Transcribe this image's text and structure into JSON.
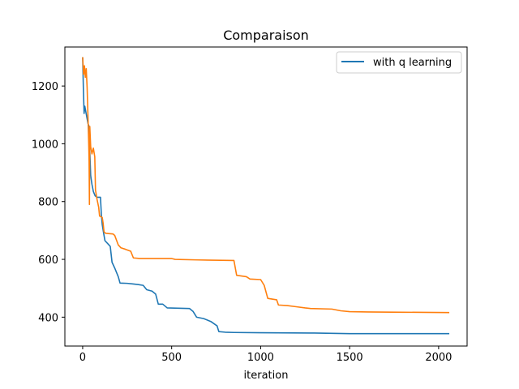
{
  "chart_data": {
    "type": "line",
    "title": "Comparaison",
    "xlabel": "iteration",
    "ylabel": "",
    "xlim": [
      -100,
      2160
    ],
    "ylim": [
      300,
      1335
    ],
    "xticks": [
      0,
      500,
      1000,
      1500,
      2000
    ],
    "yticks": [
      400,
      600,
      800,
      1000,
      1200
    ],
    "grid": false,
    "legend_position": "top-right",
    "series": [
      {
        "name": "with q learning",
        "color": "#1f77b4",
        "points": [
          [
            0,
            1300
          ],
          [
            4,
            1190
          ],
          [
            8,
            1105
          ],
          [
            12,
            1130
          ],
          [
            18,
            1110
          ],
          [
            24,
            1090
          ],
          [
            30,
            1070
          ],
          [
            36,
            1060
          ],
          [
            40,
            975
          ],
          [
            45,
            890
          ],
          [
            52,
            860
          ],
          [
            60,
            835
          ],
          [
            70,
            820
          ],
          [
            80,
            815
          ],
          [
            100,
            815
          ],
          [
            105,
            755
          ],
          [
            110,
            720
          ],
          [
            118,
            690
          ],
          [
            125,
            665
          ],
          [
            140,
            655
          ],
          [
            155,
            645
          ],
          [
            165,
            590
          ],
          [
            180,
            570
          ],
          [
            190,
            555
          ],
          [
            200,
            540
          ],
          [
            210,
            518
          ],
          [
            250,
            517
          ],
          [
            280,
            515
          ],
          [
            310,
            513
          ],
          [
            340,
            510
          ],
          [
            360,
            495
          ],
          [
            390,
            490
          ],
          [
            410,
            480
          ],
          [
            425,
            445
          ],
          [
            450,
            445
          ],
          [
            475,
            432
          ],
          [
            600,
            430
          ],
          [
            620,
            420
          ],
          [
            640,
            400
          ],
          [
            680,
            395
          ],
          [
            720,
            385
          ],
          [
            755,
            370
          ],
          [
            765,
            350
          ],
          [
            800,
            348
          ],
          [
            850,
            347
          ],
          [
            1000,
            346
          ],
          [
            1300,
            345
          ],
          [
            1500,
            343
          ],
          [
            2060,
            343
          ]
        ]
      },
      {
        "name": "",
        "color": "#ff7f0e",
        "points": [
          [
            0,
            1300
          ],
          [
            5,
            1240
          ],
          [
            10,
            1270
          ],
          [
            15,
            1230
          ],
          [
            20,
            1260
          ],
          [
            25,
            1195
          ],
          [
            30,
            1090
          ],
          [
            34,
            1000
          ],
          [
            36,
            940
          ],
          [
            38,
            790
          ],
          [
            40,
            1060
          ],
          [
            45,
            990
          ],
          [
            52,
            965
          ],
          [
            60,
            985
          ],
          [
            68,
            955
          ],
          [
            72,
            840
          ],
          [
            80,
            810
          ],
          [
            90,
            780
          ],
          [
            95,
            750
          ],
          [
            110,
            745
          ],
          [
            115,
            725
          ],
          [
            120,
            695
          ],
          [
            130,
            690
          ],
          [
            170,
            688
          ],
          [
            180,
            683
          ],
          [
            200,
            650
          ],
          [
            215,
            640
          ],
          [
            240,
            635
          ],
          [
            270,
            628
          ],
          [
            285,
            605
          ],
          [
            320,
            603
          ],
          [
            500,
            603
          ],
          [
            520,
            600
          ],
          [
            650,
            598
          ],
          [
            850,
            596
          ],
          [
            865,
            545
          ],
          [
            920,
            540
          ],
          [
            940,
            532
          ],
          [
            1000,
            530
          ],
          [
            1020,
            510
          ],
          [
            1040,
            465
          ],
          [
            1090,
            460
          ],
          [
            1100,
            442
          ],
          [
            1150,
            440
          ],
          [
            1200,
            436
          ],
          [
            1250,
            432
          ],
          [
            1280,
            430
          ],
          [
            1400,
            428
          ],
          [
            1450,
            422
          ],
          [
            1500,
            419
          ],
          [
            1600,
            418
          ],
          [
            1800,
            417
          ],
          [
            2060,
            416
          ]
        ]
      }
    ]
  }
}
